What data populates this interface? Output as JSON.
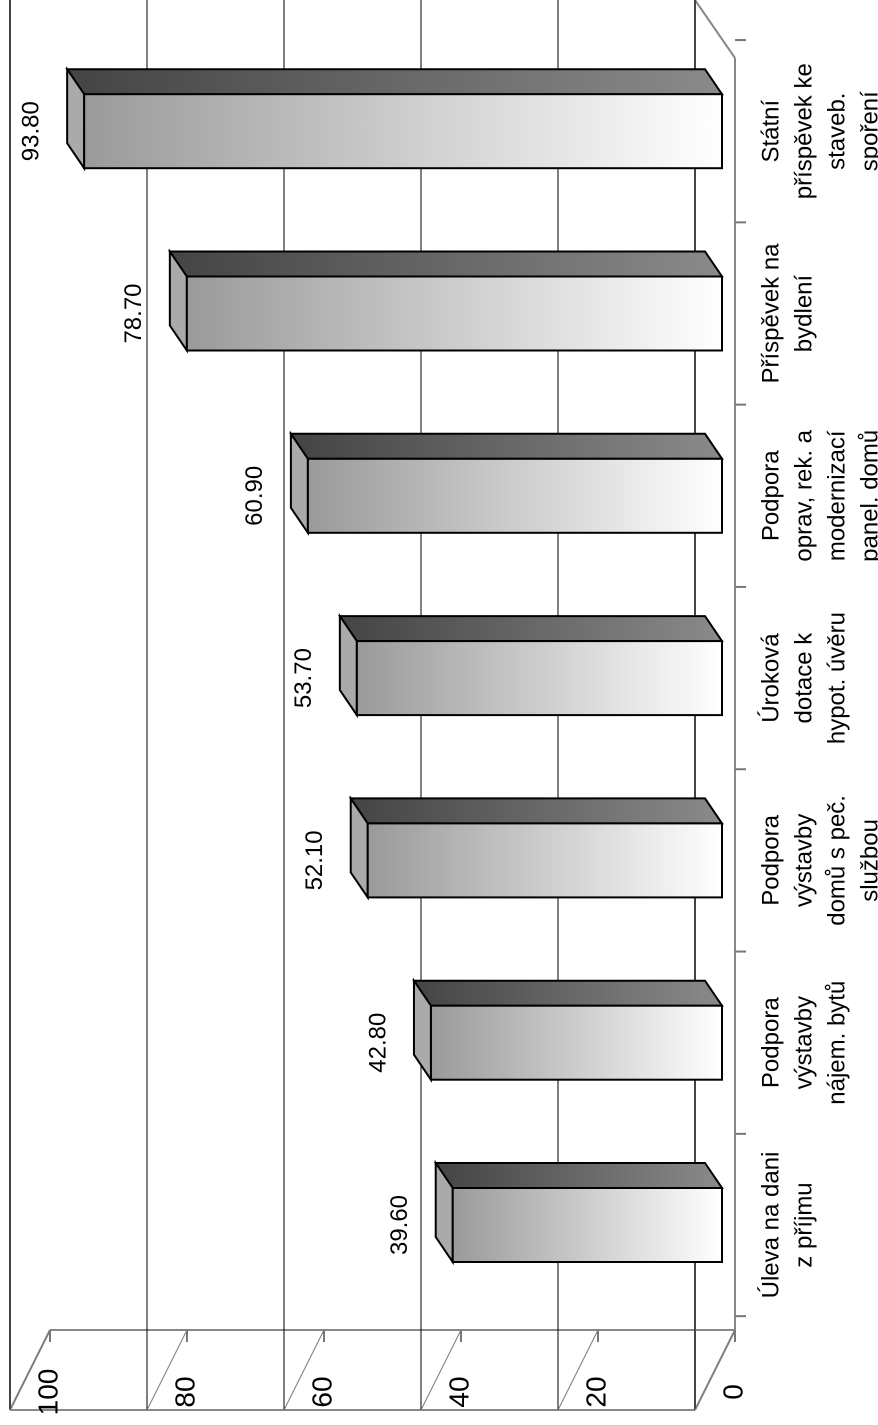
{
  "chart_data": {
    "type": "bar3d_rotated",
    "categories": [
      [
        "Úleva na dani",
        "z příjmu"
      ],
      [
        "Podpora",
        "výstavby",
        "nájem. bytů"
      ],
      [
        "Podpora",
        "výstavby",
        "domů s peč.",
        "službou"
      ],
      [
        "Úroková",
        "dotace k",
        "hypot. úvěru"
      ],
      [
        "Podpora",
        "oprav, rek. a",
        "modernizací",
        "panel. domů"
      ],
      [
        "Příspěvek na",
        "bydlení"
      ],
      [
        "Státní",
        "příspěvek ke",
        "staveb.",
        "spoření"
      ]
    ],
    "values": [
      39.6,
      42.8,
      52.1,
      53.7,
      60.9,
      78.7,
      93.8
    ],
    "value_labels": [
      "39.60",
      "42.80",
      "52.10",
      "53.70",
      "60.90",
      "78.70",
      "93.80"
    ],
    "ylim": [
      0,
      100
    ],
    "yticks": [
      0,
      20,
      40,
      60,
      80,
      100
    ],
    "grid": true,
    "color": "#aaaaaa"
  }
}
